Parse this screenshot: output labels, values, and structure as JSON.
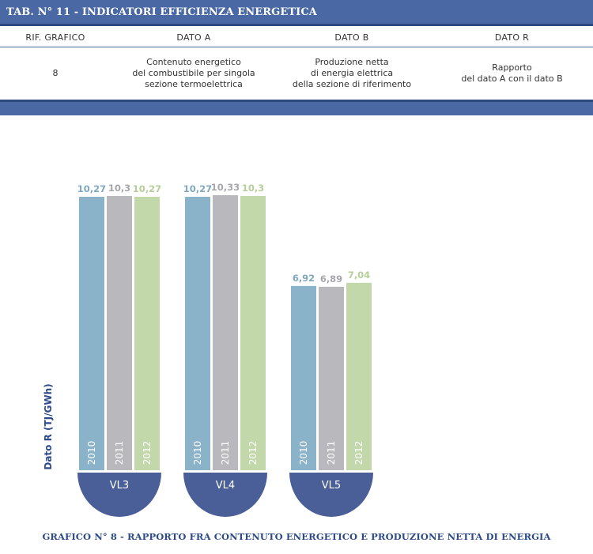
{
  "table": {
    "title": "TAB. N° 11 - INDICATORI EFFICIENZA ENERGETICA",
    "headers": [
      "RIF. GRAFICO",
      "DATO A",
      "DATO B",
      "DATO R"
    ],
    "row": {
      "rif": "8",
      "dato_a": [
        "Contenuto energetico",
        "del combustibile per singola",
        "sezione termoelettrica"
      ],
      "dato_b": [
        "Produzione netta",
        "di energia elettrica",
        "della sezione di riferimento"
      ],
      "dato_r": [
        "Rapporto",
        "del dato A con il dato B"
      ]
    }
  },
  "colors": {
    "banner": "#4a68a3",
    "y2010": "#8ab2c8",
    "y2011": "#b9b9bd",
    "y2012": "#c3d8aa",
    "label2010": "#7fa9c2",
    "label2011": "#a7a7ac",
    "label2012": "#b6cf98",
    "group_base": "#4a5f98",
    "ylabel": "#2d4a8a"
  },
  "chart_data": {
    "type": "bar",
    "ylabel": "Dato R (TJ/GWh)",
    "years": [
      "2010",
      "2011",
      "2012"
    ],
    "groups": [
      {
        "name": "VL3",
        "values": [
          10.27,
          10.3,
          10.27
        ],
        "labels": [
          "10,27",
          "10,3",
          "10,27"
        ]
      },
      {
        "name": "VL4",
        "values": [
          10.27,
          10.33,
          10.3
        ],
        "labels": [
          "10,27",
          "10,33",
          "10,3"
        ]
      },
      {
        "name": "VL5",
        "values": [
          6.92,
          6.89,
          7.04
        ],
        "labels": [
          "6,92",
          "6,89",
          "7,04"
        ]
      }
    ]
  },
  "caption": "GRAFICO N° 8 - RAPPORTO FRA CONTENUTO ENERGETICO E PRODUZIONE NETTA DI ENERGIA"
}
